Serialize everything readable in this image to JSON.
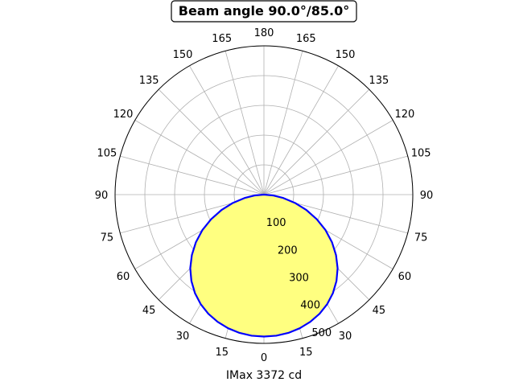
{
  "chart_data": {
    "type": "polar",
    "title": "Beam angle 90.0°/85.0°",
    "xlabel": "IMax 3372 cd",
    "angle_tick_labels_left": [
      "0",
      "15",
      "30",
      "45",
      "60",
      "75",
      "90",
      "105",
      "120",
      "135",
      "150",
      "165",
      "180"
    ],
    "angle_tick_labels_right": [
      "15",
      "30",
      "45",
      "60",
      "75",
      "90",
      "105",
      "120",
      "135",
      "150",
      "165"
    ],
    "radial_ticks": [
      100,
      200,
      300,
      400,
      500
    ],
    "radial_max": 500,
    "grid": true,
    "series": [
      {
        "color": "#0000ff",
        "fill": "#ffff80",
        "angles_deg": [
          0,
          5,
          10,
          15,
          20,
          25,
          30,
          35,
          40,
          45,
          50,
          55,
          60,
          65,
          70,
          75,
          80,
          85,
          90
        ],
        "values": [
          477,
          476,
          472,
          465,
          455,
          442,
          425,
          404,
          379,
          350,
          316,
          279,
          239,
          196,
          152,
          108,
          66,
          30,
          0
        ]
      }
    ]
  }
}
